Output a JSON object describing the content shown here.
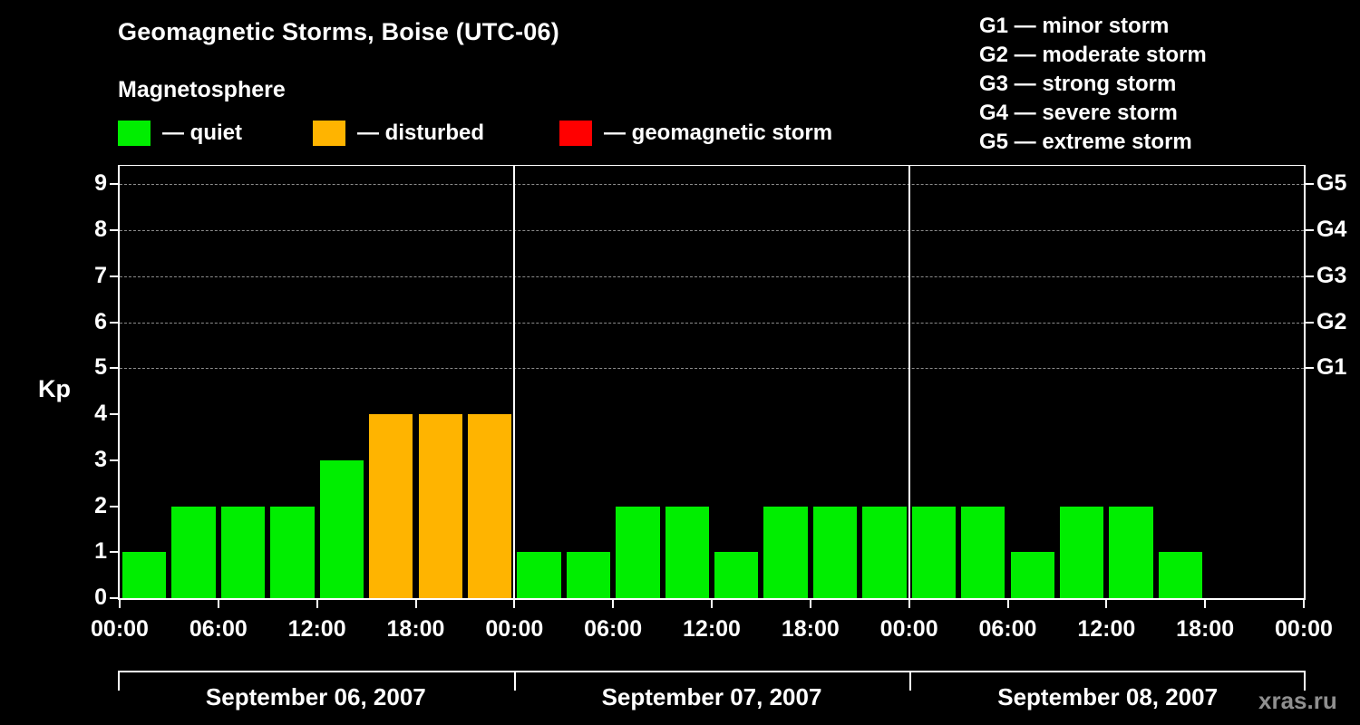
{
  "title": "Geomagnetic Storms, Boise (UTC-06)",
  "subtitle": "Magnetosphere",
  "legend": {
    "quiet": {
      "label": "— quiet",
      "color": "#00ee00"
    },
    "disturbed": {
      "label": "— disturbed",
      "color": "#ffb400"
    },
    "storm": {
      "label": "— geomagnetic storm",
      "color": "#ff0000"
    }
  },
  "storm_scale": [
    "G1 — minor storm",
    "G2 — moderate storm",
    "G3 — strong storm",
    "G4 — severe storm",
    "G5 — extreme storm"
  ],
  "watermark": "xras.ru",
  "chart_data": {
    "type": "bar",
    "title": "Geomagnetic Storms, Boise (UTC-06)",
    "ylabel": "Kp",
    "ylim": [
      0,
      9.4
    ],
    "yticks": [
      0,
      1,
      2,
      3,
      4,
      5,
      6,
      7,
      8,
      9
    ],
    "dashed_levels": [
      5,
      6,
      7,
      8,
      9
    ],
    "right_axis_labels": [
      {
        "text": "G5",
        "level": 9
      },
      {
        "text": "G4",
        "level": 8
      },
      {
        "text": "G3",
        "level": 7
      },
      {
        "text": "G2",
        "level": 6
      },
      {
        "text": "G1",
        "level": 5
      }
    ],
    "hours_per_bar": 3,
    "x_tick_hours": [
      0,
      6,
      12,
      18
    ],
    "x_tick_labels": [
      "00:00",
      "06:00",
      "12:00",
      "18:00"
    ],
    "final_tick_label": "00:00",
    "color_rules": {
      "quiet": "#00ee00",
      "disturbed": "#ffb400",
      "storm": "#ff0000",
      "disturbed_min": 4,
      "storm_min": 5
    },
    "days": [
      {
        "date": "September 06, 2007",
        "kp": [
          1,
          2,
          2,
          2,
          3,
          4,
          4,
          4
        ]
      },
      {
        "date": "September 07, 2007",
        "kp": [
          1,
          1,
          2,
          2,
          1,
          2,
          2,
          2
        ]
      },
      {
        "date": "September 08, 2007",
        "kp": [
          2,
          2,
          1,
          2,
          2,
          1,
          null,
          null
        ]
      }
    ]
  }
}
